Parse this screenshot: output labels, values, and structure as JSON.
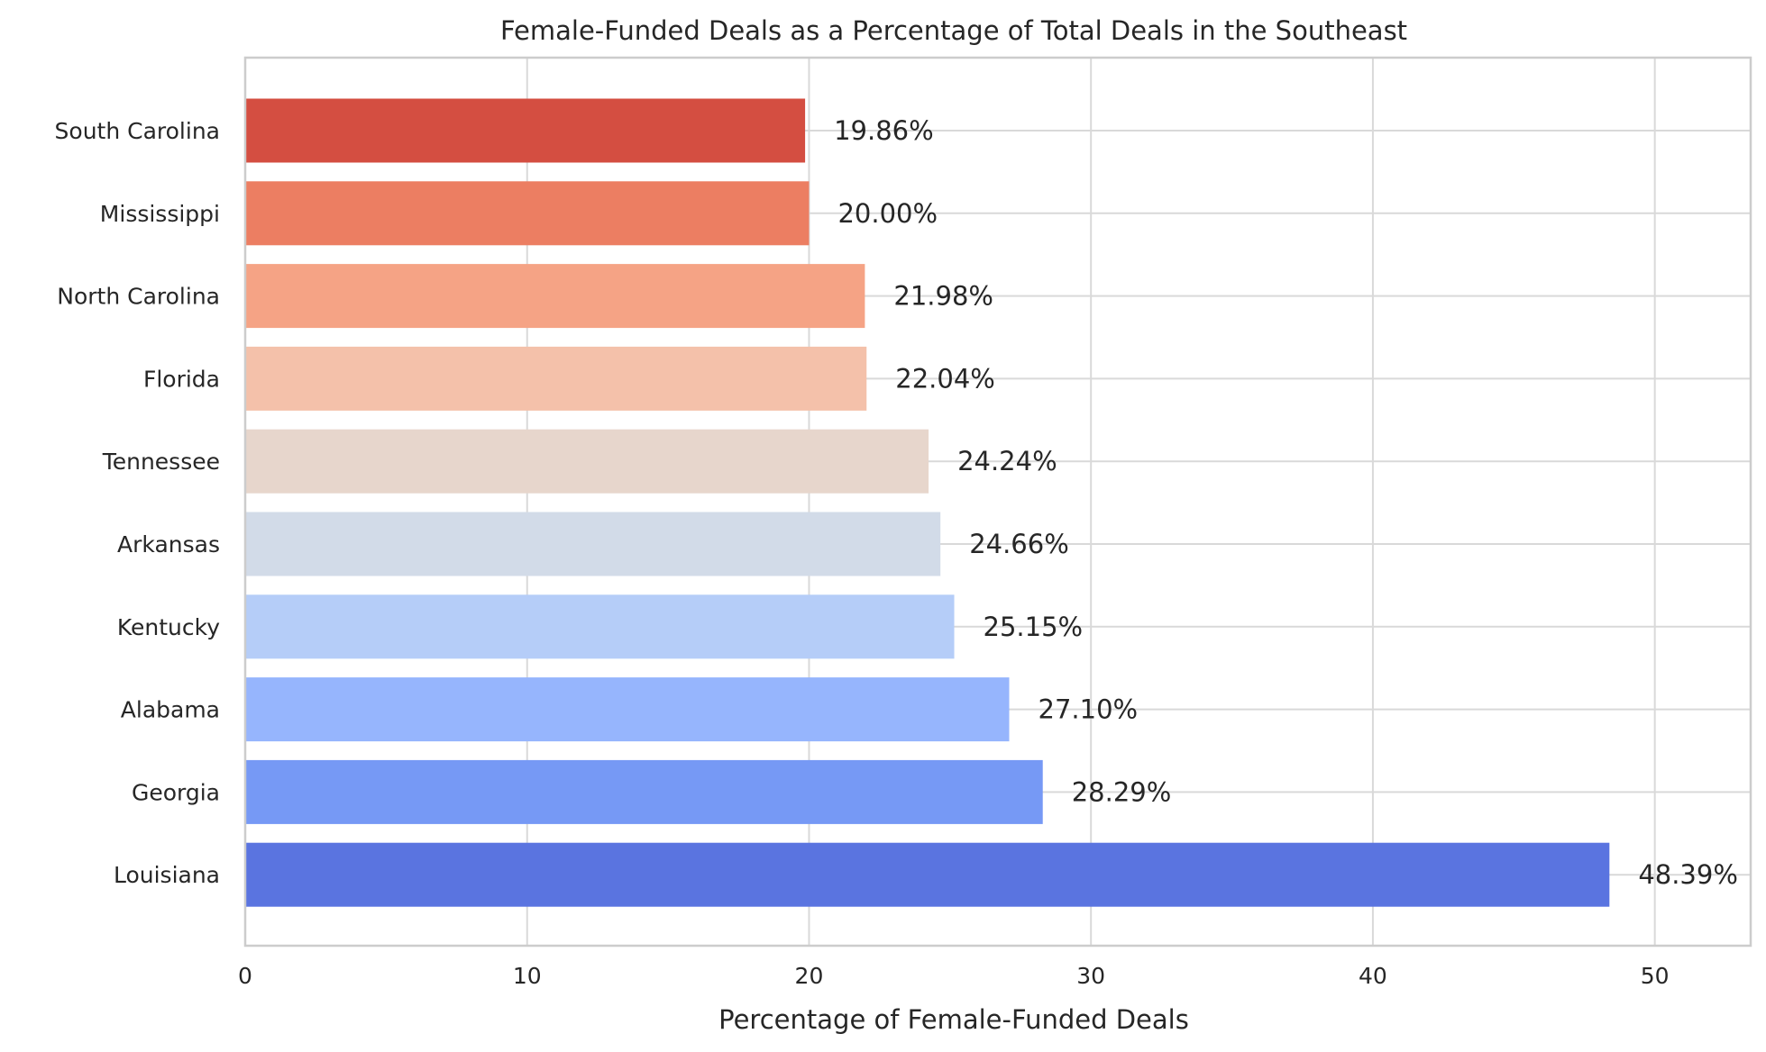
{
  "chart_data": {
    "type": "bar",
    "orientation": "horizontal",
    "title": "Female-Funded Deals as a Percentage of Total Deals in the Southeast",
    "xlabel": "Percentage of Female-Funded Deals",
    "ylabel": "",
    "xlim": [
      0,
      53.4
    ],
    "xticks": [
      0,
      10,
      20,
      30,
      40,
      50
    ],
    "grid": true,
    "categories": [
      "South Carolina",
      "Mississippi",
      "North Carolina",
      "Florida",
      "Tennessee",
      "Arkansas",
      "Kentucky",
      "Alabama",
      "Georgia",
      "Louisiana"
    ],
    "values": [
      19.86,
      20.0,
      21.98,
      22.04,
      24.24,
      24.66,
      25.15,
      27.1,
      28.29,
      48.39
    ],
    "data_labels": [
      "19.86%",
      "20.00%",
      "21.98%",
      "22.04%",
      "24.24%",
      "24.66%",
      "25.15%",
      "27.10%",
      "28.29%",
      "48.39%"
    ],
    "colors": [
      "#d44e41",
      "#ec7e62",
      "#f5a385",
      "#f4c1aa",
      "#e7d6cc",
      "#d2dbe8",
      "#b5cdf8",
      "#96b5fd",
      "#7699f5",
      "#5a74e0"
    ]
  }
}
